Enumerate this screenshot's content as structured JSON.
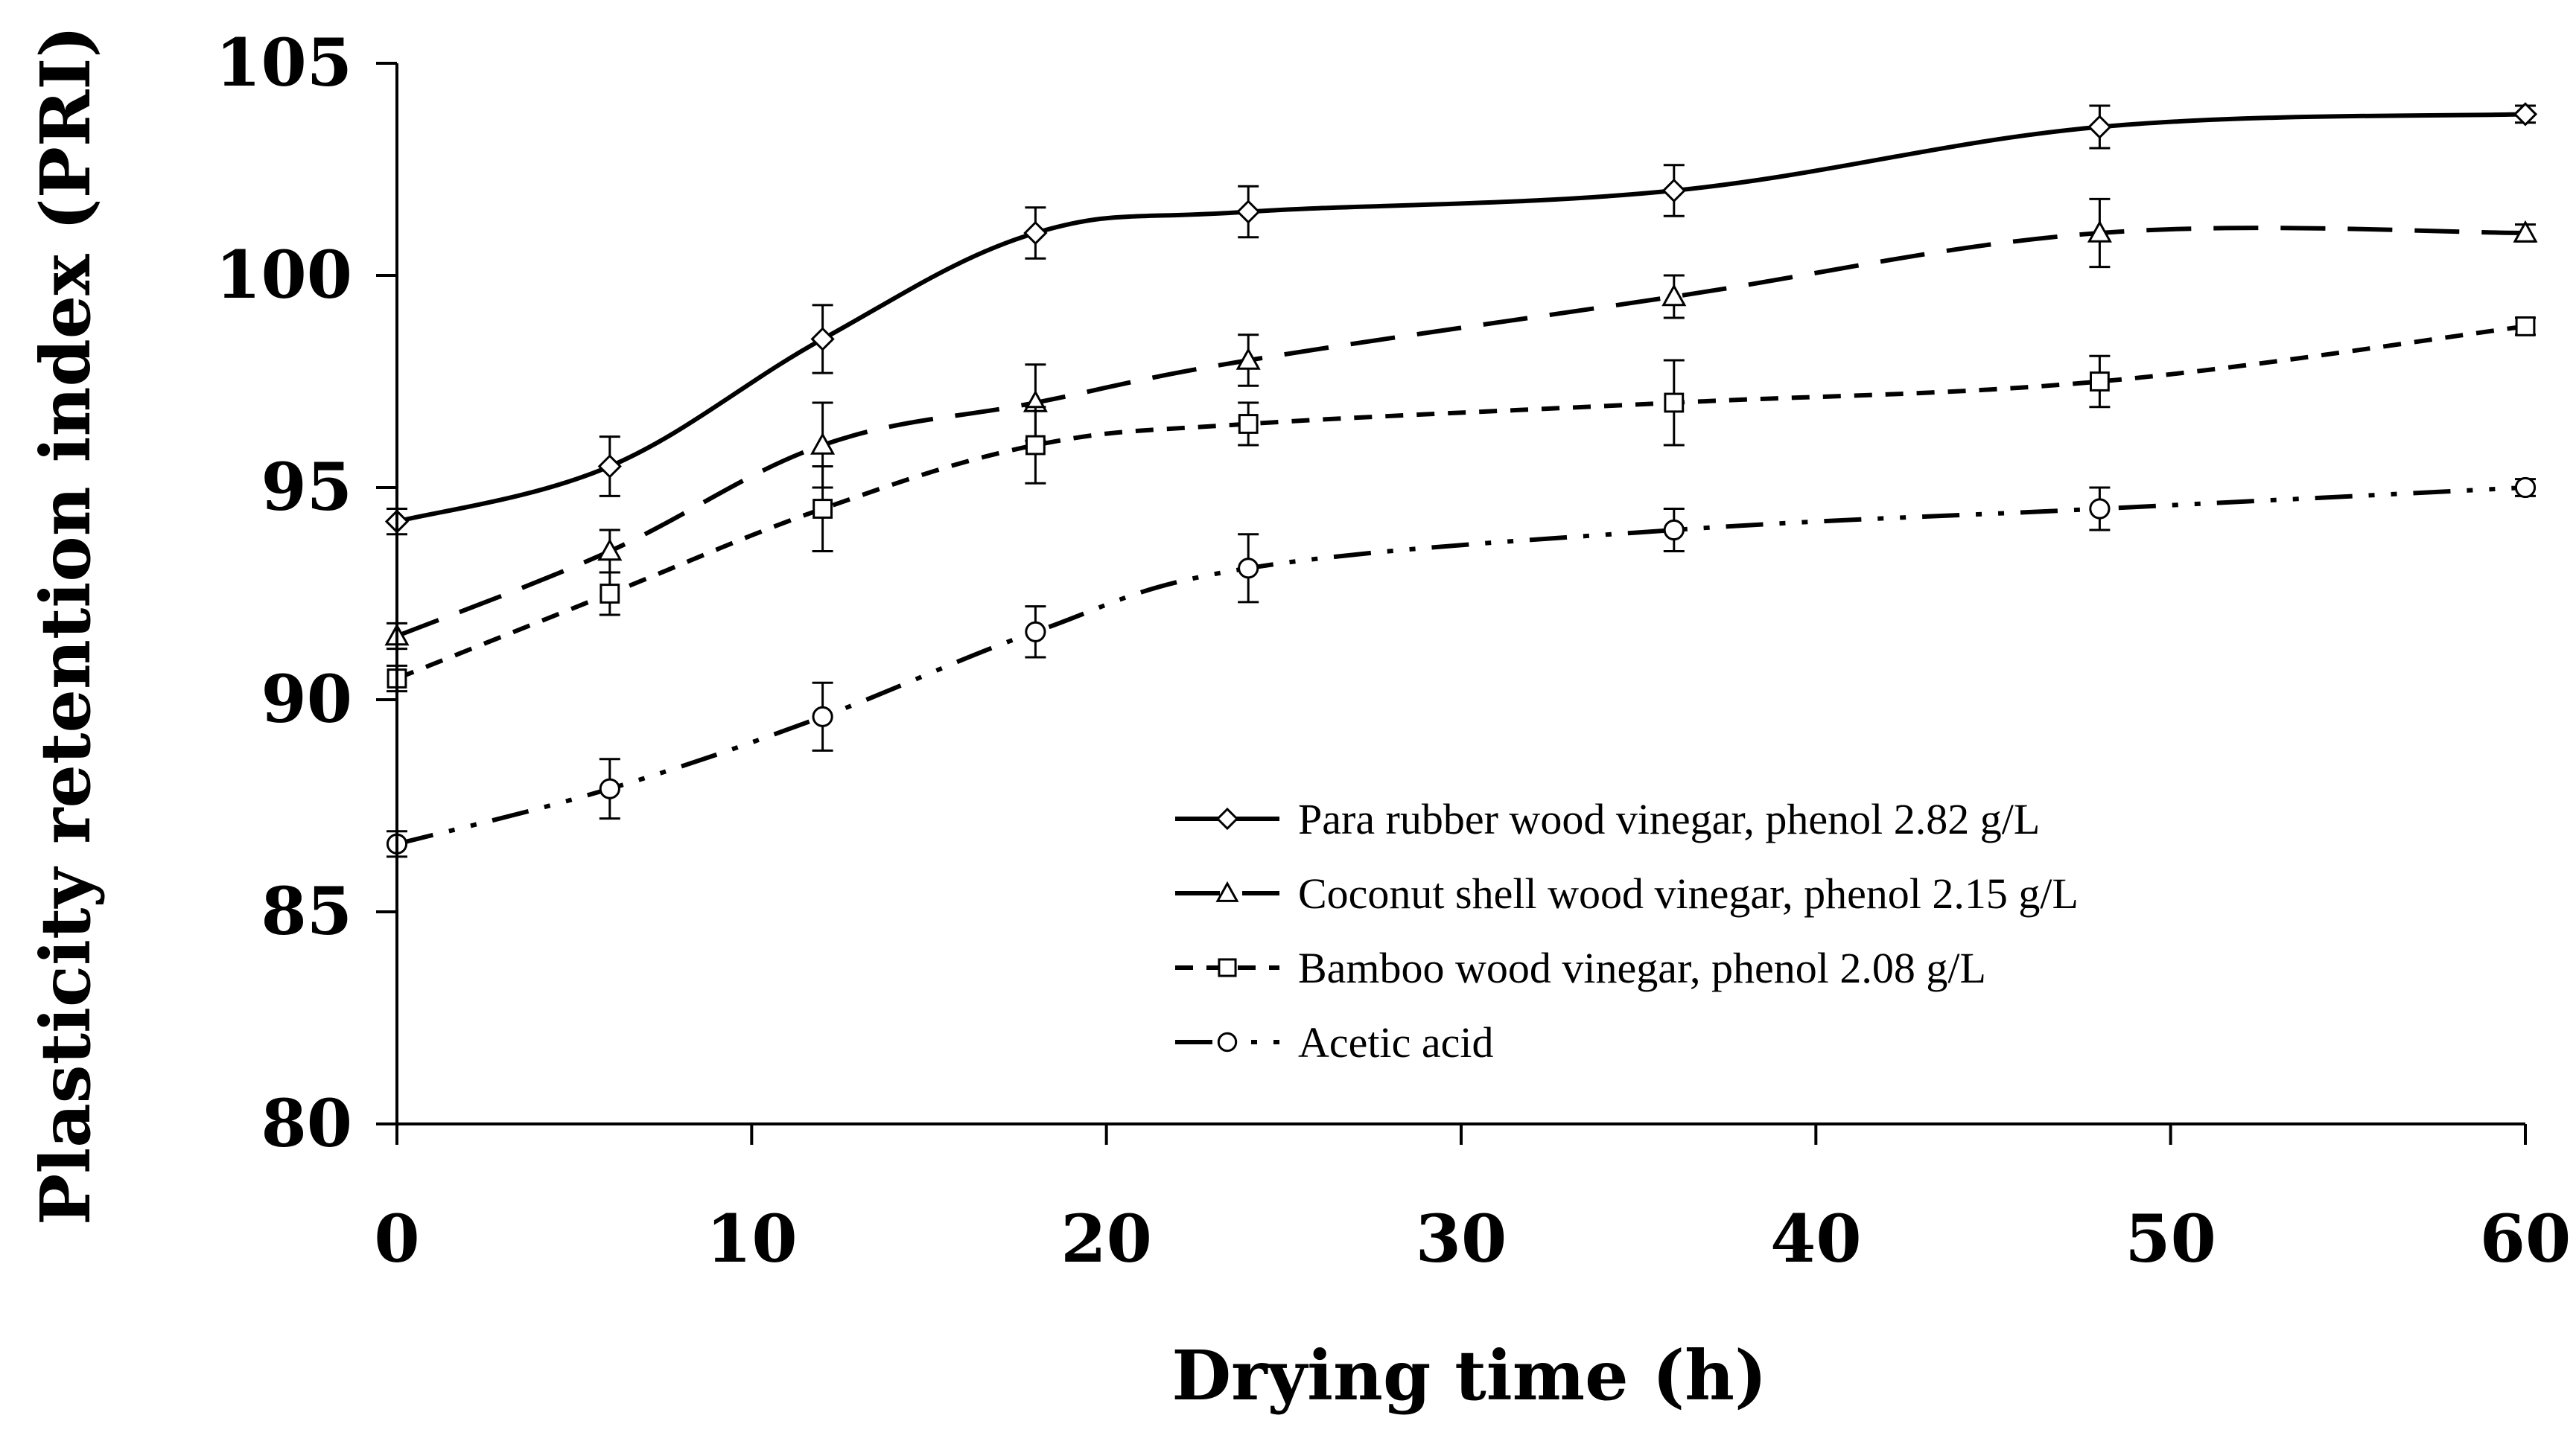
{
  "chart_data": {
    "type": "line",
    "title": "",
    "xlabel": "Drying time (h)",
    "ylabel": "Plasticity retention index (PRI)",
    "xlim": [
      0,
      60
    ],
    "ylim": [
      80,
      105
    ],
    "xticks": [
      0,
      10,
      20,
      30,
      40,
      50,
      60
    ],
    "yticks": [
      80,
      85,
      90,
      95,
      100,
      105
    ],
    "xtick_labels": [
      "0",
      "10",
      "20",
      "30",
      "40",
      "50",
      "60"
    ],
    "ytick_labels": [
      "80",
      "85",
      "90",
      "95",
      "100",
      "105"
    ],
    "grid": false,
    "legend_position": "bottom-center",
    "x": [
      0,
      6,
      12,
      18,
      24,
      36,
      48,
      60
    ],
    "series": [
      {
        "name": "Para rubber wood vinegar, phenol 2.82 g/L",
        "marker": "diamond",
        "line_style": "solid",
        "values": [
          94.2,
          95.5,
          98.5,
          101.0,
          101.5,
          102.0,
          103.5,
          103.8
        ],
        "errors": [
          0.3,
          0.7,
          0.8,
          0.6,
          0.6,
          0.6,
          0.5,
          0.2
        ]
      },
      {
        "name": "Coconut shell wood vinegar, phenol 2.15 g/L",
        "marker": "triangle",
        "line_style": "long-dash",
        "values": [
          91.5,
          93.5,
          96.0,
          97.0,
          98.0,
          99.5,
          101.0,
          101.0
        ],
        "errors": [
          0.3,
          0.5,
          1.0,
          0.9,
          0.6,
          0.5,
          0.8,
          0.2
        ]
      },
      {
        "name": "Bamboo wood vinegar, phenol 2.08 g/L",
        "marker": "square",
        "line_style": "short-dash",
        "values": [
          90.5,
          92.5,
          94.5,
          96.0,
          96.5,
          97.0,
          97.5,
          98.8
        ],
        "errors": [
          0.3,
          0.5,
          1.0,
          0.9,
          0.5,
          1.0,
          0.6,
          0.2
        ]
      },
      {
        "name": "Acetic acid",
        "marker": "circle",
        "line_style": "dash-dot-dot",
        "values": [
          86.6,
          87.9,
          89.6,
          91.6,
          93.1,
          94.0,
          94.5,
          95.0
        ],
        "errors": [
          0.3,
          0.7,
          0.8,
          0.6,
          0.8,
          0.5,
          0.5,
          0.2
        ]
      }
    ]
  }
}
